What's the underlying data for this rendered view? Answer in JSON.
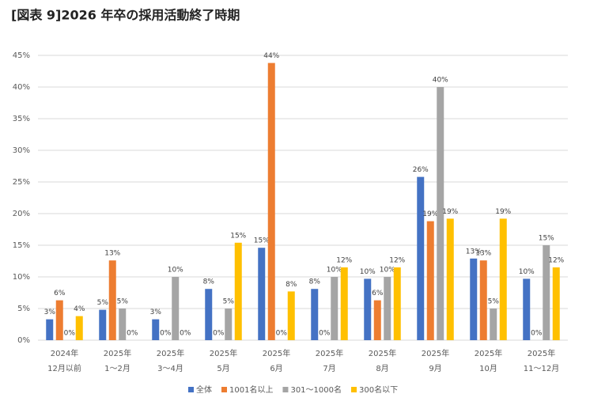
{
  "chart_data": {
    "type": "bar",
    "title": "[図表 9]2026 年卒の採用活動終了時期",
    "categories": [
      [
        "2024年",
        "12月以前"
      ],
      [
        "2025年",
        "1〜2月"
      ],
      [
        "2025年",
        "3〜4月"
      ],
      [
        "2025年",
        "5月"
      ],
      [
        "2025年",
        "6月"
      ],
      [
        "2025年",
        "7月"
      ],
      [
        "2025年",
        "8月"
      ],
      [
        "2025年",
        "9月"
      ],
      [
        "2025年",
        "10月"
      ],
      [
        "2025年",
        "11〜12月"
      ]
    ],
    "series": [
      {
        "name": "全体",
        "color": "#4472c4",
        "values": [
          3.3,
          4.8,
          3.3,
          8.1,
          14.6,
          8.1,
          9.7,
          25.8,
          12.9,
          9.7
        ],
        "value_labels": [
          "3%",
          "5%",
          "3%",
          "8%",
          "15%",
          "8%",
          "10%",
          "26%",
          "13%",
          "10%"
        ]
      },
      {
        "name": "1001名以上",
        "color": "#ed7d31",
        "values": [
          6.3,
          12.6,
          0,
          0,
          43.8,
          0,
          6.3,
          18.8,
          12.6,
          0
        ],
        "value_labels": [
          "6%",
          "13%",
          "0%",
          "0%",
          "44%",
          "0%",
          "6%",
          "19%",
          "13%",
          "0%"
        ]
      },
      {
        "name": "301〜1000名",
        "color": "#a5a5a5",
        "values": [
          0,
          5,
          10,
          5,
          0,
          10,
          10,
          40,
          5,
          15
        ],
        "value_labels": [
          "0%",
          "5%",
          "10%",
          "5%",
          "0%",
          "10%",
          "10%",
          "40%",
          "5%",
          "15%"
        ]
      },
      {
        "name": "300名以下",
        "color": "#ffc000",
        "values": [
          3.8,
          0,
          0,
          15.4,
          7.7,
          11.5,
          11.5,
          19.2,
          19.2,
          11.5
        ],
        "value_labels": [
          "4%",
          "0%",
          "0%",
          "15%",
          "8%",
          "12%",
          "12%",
          "19%",
          "19%",
          "12%"
        ]
      }
    ],
    "ylim": [
      0,
      45
    ],
    "yticks": [
      {
        "value": 0,
        "label": "0%"
      },
      {
        "value": 5,
        "label": "5%"
      },
      {
        "value": 10,
        "label": "10%"
      },
      {
        "value": 15,
        "label": "15%"
      },
      {
        "value": 20,
        "label": "20%"
      },
      {
        "value": 25,
        "label": "25%"
      },
      {
        "value": 30,
        "label": "30%"
      },
      {
        "value": 35,
        "label": "35%"
      },
      {
        "value": 40,
        "label": "40%"
      },
      {
        "value": 45,
        "label": "45%"
      }
    ],
    "grid": true
  }
}
